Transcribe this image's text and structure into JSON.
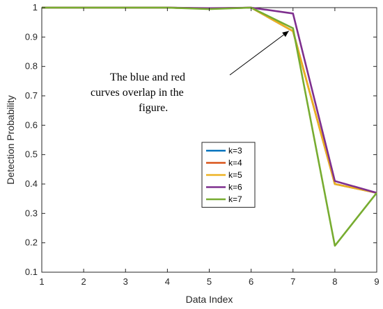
{
  "chart_data": {
    "type": "line",
    "xlabel": "Data Index",
    "ylabel": "Detection Probability",
    "xlim": [
      1,
      9
    ],
    "ylim": [
      0.1,
      1
    ],
    "xticks": [
      "1",
      "2",
      "3",
      "4",
      "5",
      "6",
      "7",
      "8",
      "9"
    ],
    "yticks": [
      "0.1",
      "0.2",
      "0.3",
      "0.4",
      "0.5",
      "0.6",
      "0.7",
      "0.8",
      "0.9",
      "1"
    ],
    "grid": false,
    "legend_position": "center",
    "x": [
      1,
      2,
      3,
      4,
      5,
      6,
      7,
      8,
      9
    ],
    "series": [
      {
        "name": "k=3",
        "color": "#0072BD",
        "values": [
          1,
          1,
          1,
          1,
          0.997,
          1,
          0.92,
          0.4,
          0.37
        ]
      },
      {
        "name": "k=4",
        "color": "#D95319",
        "values": [
          1,
          1,
          1,
          1,
          0.997,
          1,
          0.92,
          0.4,
          0.37
        ]
      },
      {
        "name": "k=5",
        "color": "#EDB120",
        "values": [
          1,
          1,
          1,
          1,
          0.997,
          1,
          0.92,
          0.4,
          0.37
        ]
      },
      {
        "name": "k=6",
        "color": "#7E2F8E",
        "values": [
          1,
          1,
          1,
          1,
          0.998,
          1,
          0.98,
          0.41,
          0.37
        ]
      },
      {
        "name": "k=7",
        "color": "#77AC30",
        "values": [
          1,
          1,
          1,
          1,
          0.995,
          1,
          0.93,
          0.19,
          0.37
        ]
      }
    ],
    "annotation": {
      "lines": [
        "The blue and red",
        "curves overlap in the",
        "figure."
      ],
      "arrow_target": {
        "x": 7,
        "y": 0.93
      }
    }
  }
}
